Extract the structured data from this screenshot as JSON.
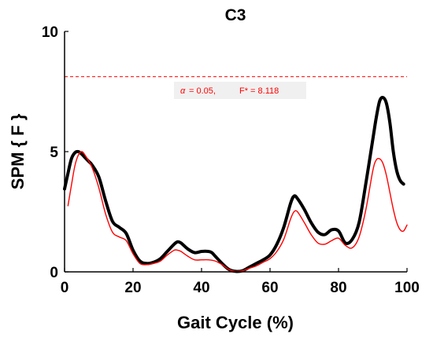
{
  "chart_data": {
    "type": "line",
    "title": "C3",
    "xlabel": "Gait Cycle (%)",
    "ylabel": "SPM { F }",
    "xlim": [
      0,
      100
    ],
    "ylim": [
      0,
      10
    ],
    "xticks": [
      0,
      20,
      40,
      60,
      80,
      100
    ],
    "yticks": [
      0,
      5,
      10
    ],
    "grid": false,
    "threshold": {
      "value": 8.118,
      "color": "#ff0000",
      "style": "dashed"
    },
    "annotation": {
      "alpha_symbol": "α",
      "alpha_text": " = 0.05,",
      "fstar_text": "F* = 8.118"
    },
    "series": [
      {
        "color": "#000000",
        "x": [
          0,
          1,
          2,
          3,
          4,
          5,
          6,
          7,
          8,
          10,
          12,
          14,
          16,
          18,
          20,
          22,
          24,
          26,
          28,
          30,
          32,
          33,
          34,
          36,
          38,
          40,
          42,
          43,
          44,
          46,
          48,
          50,
          52,
          54,
          56,
          58,
          60,
          62,
          64,
          66,
          67,
          68,
          70,
          72,
          74,
          76,
          78,
          80,
          82,
          84,
          86,
          88,
          90,
          91,
          92,
          93,
          94,
          95,
          96,
          97,
          98,
          99
        ],
        "values": [
          3.45,
          4.1,
          4.7,
          4.95,
          5.0,
          4.9,
          4.75,
          4.6,
          4.45,
          3.95,
          2.95,
          2.1,
          1.85,
          1.6,
          0.9,
          0.45,
          0.35,
          0.4,
          0.55,
          0.85,
          1.15,
          1.25,
          1.2,
          0.95,
          0.8,
          0.85,
          0.85,
          0.8,
          0.65,
          0.35,
          0.1,
          0.02,
          0.05,
          0.2,
          0.35,
          0.5,
          0.7,
          1.15,
          1.85,
          2.85,
          3.15,
          3.05,
          2.6,
          2.05,
          1.65,
          1.55,
          1.75,
          1.7,
          1.2,
          1.35,
          2.05,
          3.7,
          5.5,
          6.4,
          7.1,
          7.25,
          7.0,
          6.2,
          5.0,
          4.2,
          3.8,
          3.65
        ]
      },
      {
        "color": "#ff0000",
        "x": [
          1,
          2,
          3,
          4,
          5,
          6,
          8,
          10,
          12,
          14,
          16,
          18,
          20,
          22,
          24,
          26,
          28,
          30,
          32,
          33,
          34,
          36,
          38,
          40,
          42,
          44,
          46,
          48,
          50,
          52,
          54,
          56,
          58,
          60,
          62,
          64,
          66,
          67,
          68,
          70,
          72,
          74,
          76,
          78,
          80,
          82,
          84,
          86,
          88,
          90,
          91,
          92,
          93,
          94,
          95,
          96,
          97,
          98,
          99,
          100
        ],
        "values": [
          2.75,
          3.6,
          4.4,
          4.85,
          5.0,
          4.85,
          4.35,
          3.5,
          2.4,
          1.65,
          1.45,
          1.3,
          0.75,
          0.35,
          0.3,
          0.35,
          0.45,
          0.7,
          0.9,
          0.9,
          0.85,
          0.65,
          0.5,
          0.5,
          0.5,
          0.45,
          0.3,
          0.1,
          0.02,
          0.05,
          0.15,
          0.25,
          0.4,
          0.55,
          0.85,
          1.35,
          2.2,
          2.5,
          2.5,
          2.05,
          1.55,
          1.2,
          1.15,
          1.3,
          1.4,
          1.1,
          1.0,
          1.45,
          2.6,
          4.2,
          4.65,
          4.7,
          4.5,
          4.0,
          3.3,
          2.6,
          2.05,
          1.75,
          1.7,
          1.95
        ]
      }
    ]
  }
}
